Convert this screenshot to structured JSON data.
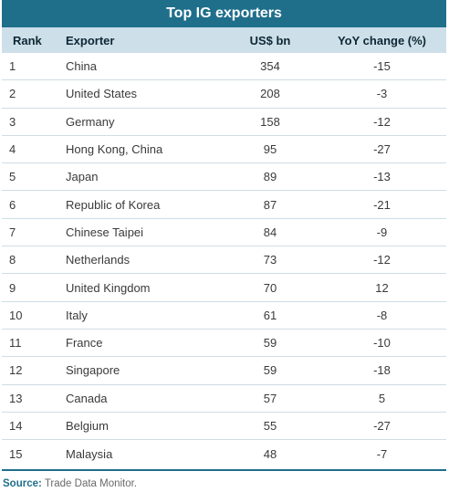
{
  "chart_data": {
    "type": "table",
    "title": "Top IG exporters",
    "columns": [
      "Rank",
      "Exporter",
      "US$ bn",
      "YoY change (%)"
    ],
    "rows": [
      {
        "rank": "1",
        "exporter": "China",
        "usd_bn": "354",
        "yoy": "-15"
      },
      {
        "rank": "2",
        "exporter": "United States",
        "usd_bn": "208",
        "yoy": "-3"
      },
      {
        "rank": "3",
        "exporter": "Germany",
        "usd_bn": "158",
        "yoy": "-12"
      },
      {
        "rank": "4",
        "exporter": "Hong Kong, China",
        "usd_bn": "95",
        "yoy": "-27"
      },
      {
        "rank": "5",
        "exporter": "Japan",
        "usd_bn": "89",
        "yoy": "-13"
      },
      {
        "rank": "6",
        "exporter": "Republic of Korea",
        "usd_bn": "87",
        "yoy": "-21"
      },
      {
        "rank": "7",
        "exporter": "Chinese Taipei",
        "usd_bn": "84",
        "yoy": "-9"
      },
      {
        "rank": "8",
        "exporter": "Netherlands",
        "usd_bn": "73",
        "yoy": "-12"
      },
      {
        "rank": "9",
        "exporter": "United Kingdom",
        "usd_bn": "70",
        "yoy": "12"
      },
      {
        "rank": "10",
        "exporter": "Italy",
        "usd_bn": "61",
        "yoy": "-8"
      },
      {
        "rank": "11",
        "exporter": "France",
        "usd_bn": "59",
        "yoy": "-10"
      },
      {
        "rank": "12",
        "exporter": "Singapore",
        "usd_bn": "59",
        "yoy": "-18"
      },
      {
        "rank": "13",
        "exporter": "Canada",
        "usd_bn": "57",
        "yoy": "5"
      },
      {
        "rank": "14",
        "exporter": "Belgium",
        "usd_bn": "55",
        "yoy": "-27"
      },
      {
        "rank": "15",
        "exporter": "Malaysia",
        "usd_bn": "48",
        "yoy": "-7"
      }
    ]
  },
  "source": {
    "label": "Source:",
    "text": "Trade Data Monitor."
  },
  "colors": {
    "title_bg": "#1f6f8b",
    "header_bg": "#cde0ea",
    "row_divider": "#cfdde5"
  }
}
